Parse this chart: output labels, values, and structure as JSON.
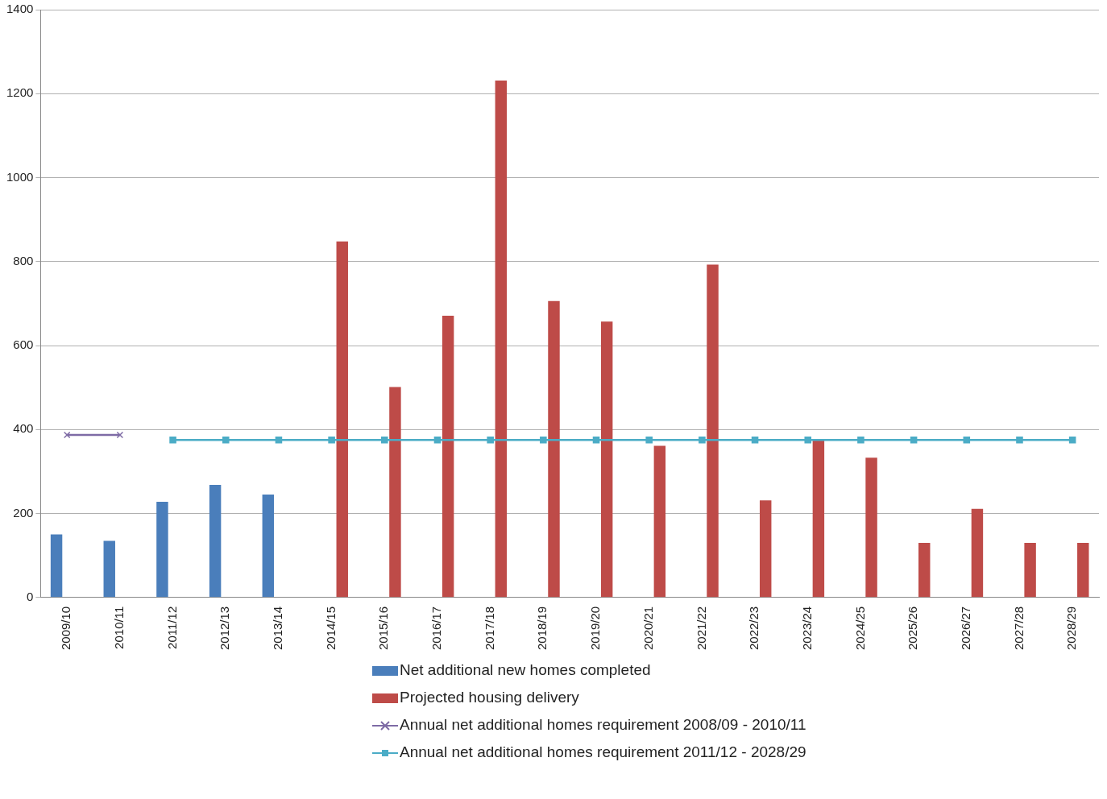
{
  "chart_data": {
    "type": "bar",
    "categories": [
      "2009/10",
      "2010/11",
      "2011/12",
      "2012/13",
      "2013/14",
      "2014/15",
      "2015/16",
      "2016/17",
      "2017/18",
      "2018/19",
      "2019/20",
      "2020/21",
      "2021/22",
      "2022/23",
      "2023/24",
      "2024/25",
      "2025/26",
      "2026/27",
      "2027/28",
      "2028/29"
    ],
    "series": [
      {
        "name": "Net additional new homes completed",
        "color": "#4a7ebb",
        "values": [
          150,
          135,
          228,
          268,
          245,
          null,
          null,
          null,
          null,
          null,
          null,
          null,
          null,
          null,
          null,
          null,
          null,
          null,
          null,
          null
        ]
      },
      {
        "name": "Projected housing delivery",
        "color": "#be4b48",
        "values": [
          null,
          null,
          null,
          null,
          null,
          848,
          501,
          671,
          1231,
          706,
          657,
          361,
          793,
          231,
          377,
          333,
          130,
          211,
          130,
          130
        ]
      },
      {
        "name": "Annual net additional homes requirement 2008/09 - 2010/11",
        "type": "line",
        "marker": "cross",
        "color": "#7e6ba5",
        "values": [
          387,
          387,
          null,
          null,
          null,
          null,
          null,
          null,
          null,
          null,
          null,
          null,
          null,
          null,
          null,
          null,
          null,
          null,
          null,
          null
        ]
      },
      {
        "name": "Annual net additional homes requirement 2011/12 - 2028/29",
        "type": "line",
        "marker": "square",
        "color": "#4bacc6",
        "values": [
          null,
          null,
          375,
          375,
          375,
          375,
          375,
          375,
          375,
          375,
          375,
          375,
          375,
          375,
          375,
          375,
          375,
          375,
          375,
          375
        ]
      }
    ],
    "ylim": [
      0,
      1400
    ],
    "yticks": [
      0,
      200,
      400,
      600,
      800,
      1000,
      1200,
      1400
    ],
    "grid": "y",
    "legend": "bottom"
  }
}
